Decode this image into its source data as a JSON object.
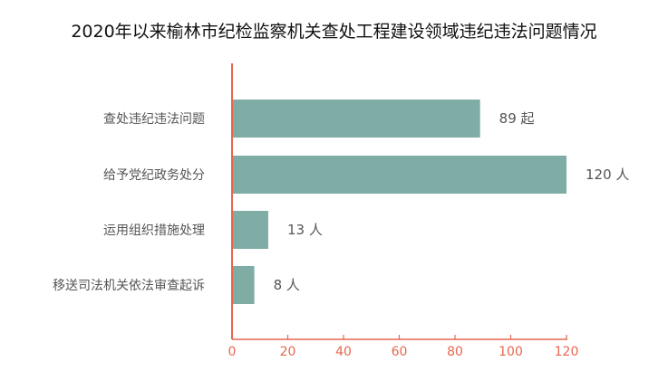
{
  "chart_data": {
    "type": "bar",
    "orientation": "horizontal",
    "title": "2020年以来榆林市纪检监察机关查处工程建设领域违纪违法问题情况",
    "categories": [
      "查处违纪违法问题",
      "给予党纪政务处分",
      "运用组织措施处理",
      "移送司法机关依法审查起诉"
    ],
    "values": [
      89,
      120,
      13,
      8
    ],
    "data_labels": [
      "89 起",
      "120 人",
      "13 人",
      "8 人"
    ],
    "xlim": [
      0,
      120
    ],
    "xticks": [
      "0",
      "20",
      "40",
      "60",
      "80",
      "100",
      "120"
    ],
    "xlabel": "",
    "ylabel": "",
    "grid": false,
    "colors": {
      "bar": "#7fada6",
      "axis": "#e8664f",
      "label": "#555555"
    }
  }
}
